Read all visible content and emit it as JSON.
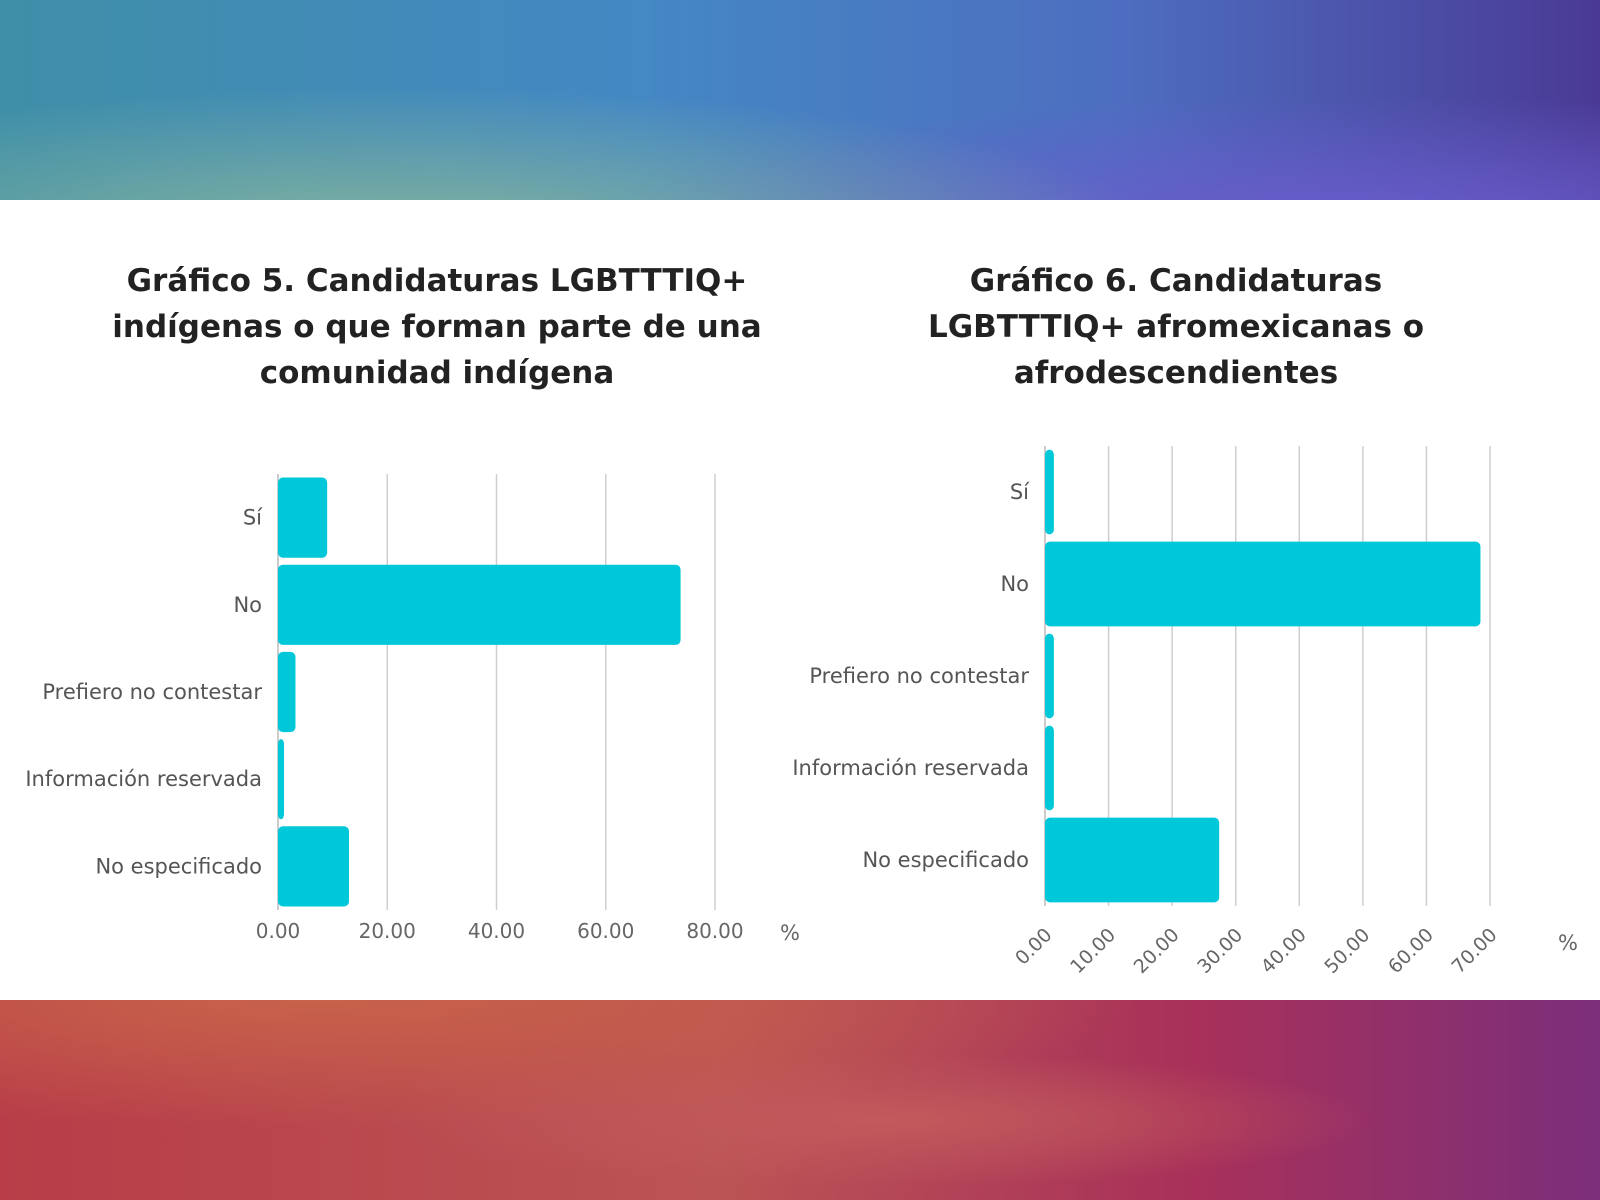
{
  "chart_data": [
    {
      "type": "bar",
      "orientation": "horizontal",
      "title": "Gráfico 5. Candidaturas LGBTTTIQ+ indígenas o que forman parte de una comunidad indígena",
      "categories": [
        "Sí",
        "No",
        "Prefiero no contestar",
        "Información reservada",
        "No especificado"
      ],
      "values": [
        9.0,
        73.7,
        3.2,
        1.1,
        13.0
      ],
      "xlabel": "%",
      "xlim": [
        0,
        80
      ],
      "xticks": [
        "0.00",
        "20.00",
        "40.00",
        "60.00",
        "80.00"
      ],
      "grid": true,
      "color": "#00c8d8"
    },
    {
      "type": "bar",
      "orientation": "horizontal",
      "title": "Gráfico 6. Candidaturas LGBTTTIQ+ afromexicanas o afrodescendientes",
      "categories": [
        "Sí",
        "No",
        "Prefiero no contestar",
        "Información reservada",
        "No especificado"
      ],
      "values": [
        1.4,
        68.5,
        1.4,
        1.4,
        27.4
      ],
      "xlabel": "%",
      "xlim": [
        0,
        70
      ],
      "xticks": [
        "0.00",
        "10.00",
        "20.00",
        "30.00",
        "40.00",
        "50.00",
        "60.00",
        "70.00"
      ],
      "grid": true,
      "color": "#00c8d8"
    }
  ]
}
